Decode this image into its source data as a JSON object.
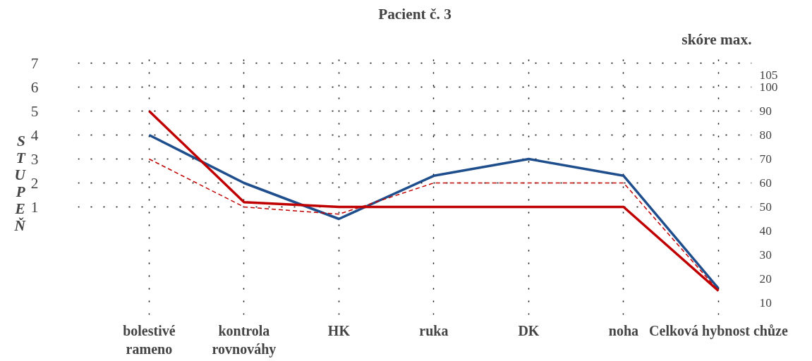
{
  "chart_data": {
    "type": "line",
    "title": "Pacient č. 3",
    "ylabel": "STUPEŇ",
    "y2label": "skóre max.",
    "categories": [
      "bolestivé rameno",
      "kontrola rovnováhy",
      "HK",
      "ruka",
      "DK",
      "noha",
      "Celková hybnost chůze"
    ],
    "series": [
      {
        "color": "#1f4e8c",
        "axis": "y2",
        "values": [
          80,
          60,
          45,
          63,
          70,
          63,
          16
        ]
      },
      {
        "color": "#c00000",
        "axis": "y2",
        "values": [
          90,
          52,
          50,
          50,
          50,
          50,
          15
        ]
      },
      {
        "color": "#c00000",
        "axis": "y2",
        "line_style": "dashed",
        "values": [
          70,
          50,
          47,
          60,
          60,
          60,
          15
        ]
      }
    ],
    "ylim": [
      -3.5,
      7.5
    ],
    "yticks": [
      1,
      2,
      3,
      4,
      5,
      6,
      7
    ],
    "y2lim": [
      5,
      115
    ],
    "y2ticks": [
      10,
      20,
      30,
      40,
      50,
      60,
      70,
      80,
      90,
      100,
      105
    ],
    "grid": true,
    "marker": "none"
  }
}
